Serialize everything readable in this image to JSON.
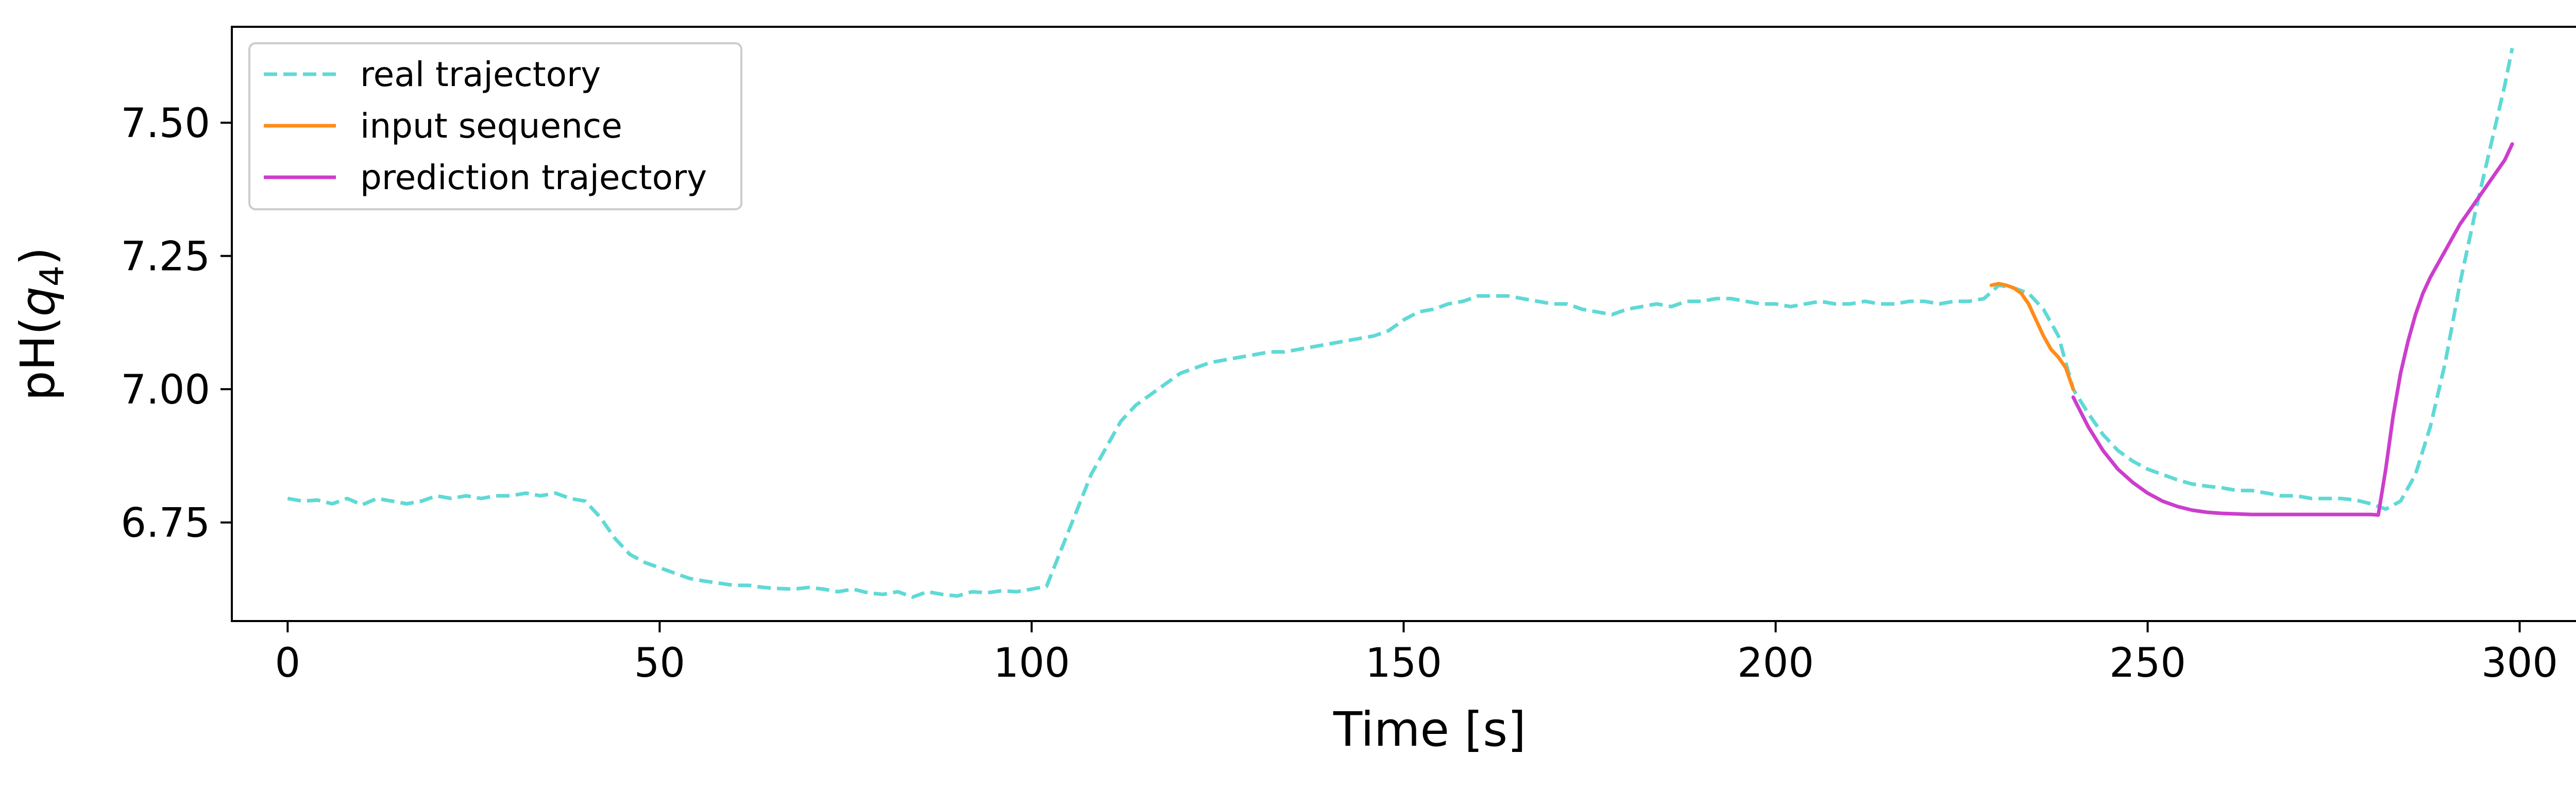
{
  "chart_data": {
    "type": "line",
    "xlabel": "Time [s]",
    "ylabel_prefix": "pH(",
    "ylabel_var": "q",
    "ylabel_sub": "4",
    "ylabel_suffix": ")",
    "xlim": [
      -7.5,
      314.5
    ],
    "ylim": [
      6.565,
      7.68
    ],
    "xticks": [
      0,
      50,
      100,
      150,
      200,
      250,
      300
    ],
    "xtick_labels": [
      "0",
      "50",
      "100",
      "150",
      "200",
      "250",
      "300"
    ],
    "yticks": [
      6.75,
      7.0,
      7.25,
      7.5
    ],
    "ytick_labels": [
      "6.75",
      "7.00",
      "7.25",
      "7.50"
    ],
    "grid": false,
    "legend_position": "top-left",
    "series": [
      {
        "name": "real trajectory",
        "color": "#5fd9d6",
        "style": "dashed",
        "x": [
          0,
          2,
          4,
          6,
          8,
          10,
          12,
          14,
          16,
          18,
          20,
          22,
          24,
          26,
          28,
          30,
          32,
          34,
          36,
          38,
          40,
          42,
          44,
          46,
          48,
          50,
          52,
          54,
          56,
          58,
          60,
          62,
          64,
          66,
          68,
          70,
          72,
          74,
          76,
          78,
          80,
          82,
          84,
          86,
          88,
          90,
          92,
          94,
          96,
          98,
          100,
          102,
          104,
          106,
          108,
          110,
          112,
          114,
          116,
          118,
          120,
          122,
          124,
          126,
          128,
          130,
          132,
          134,
          136,
          138,
          140,
          142,
          144,
          146,
          148,
          150,
          152,
          154,
          156,
          158,
          160,
          162,
          164,
          166,
          168,
          170,
          172,
          174,
          176,
          178,
          180,
          182,
          184,
          186,
          188,
          190,
          192,
          194,
          196,
          198,
          200,
          202,
          204,
          206,
          208,
          210,
          212,
          214,
          216,
          218,
          220,
          222,
          224,
          226,
          228,
          230,
          232,
          234,
          236,
          238,
          240,
          242,
          244,
          246,
          248,
          250,
          252,
          254,
          256,
          258,
          260,
          262,
          264,
          266,
          268,
          270,
          272,
          274,
          276,
          278,
          280,
          282,
          284,
          286,
          288,
          290,
          292,
          294,
          296,
          298,
          299
        ],
        "y": [
          6.795,
          6.79,
          6.792,
          6.785,
          6.795,
          6.783,
          6.795,
          6.79,
          6.785,
          6.79,
          6.8,
          6.795,
          6.8,
          6.795,
          6.8,
          6.8,
          6.805,
          6.8,
          6.805,
          6.795,
          6.79,
          6.76,
          6.72,
          6.69,
          6.675,
          6.665,
          6.655,
          6.645,
          6.64,
          6.636,
          6.632,
          6.632,
          6.628,
          6.626,
          6.625,
          6.628,
          6.625,
          6.62,
          6.625,
          6.618,
          6.615,
          6.62,
          6.61,
          6.62,
          6.615,
          6.612,
          6.62,
          6.618,
          6.622,
          6.62,
          6.625,
          6.63,
          6.7,
          6.77,
          6.84,
          6.89,
          6.94,
          6.97,
          6.99,
          7.01,
          7.03,
          7.04,
          7.05,
          7.055,
          7.06,
          7.065,
          7.07,
          7.07,
          7.075,
          7.08,
          7.085,
          7.09,
          7.095,
          7.1,
          7.11,
          7.13,
          7.145,
          7.15,
          7.16,
          7.165,
          7.175,
          7.175,
          7.175,
          7.17,
          7.165,
          7.16,
          7.16,
          7.15,
          7.145,
          7.14,
          7.15,
          7.155,
          7.16,
          7.155,
          7.165,
          7.165,
          7.17,
          7.17,
          7.165,
          7.16,
          7.16,
          7.155,
          7.16,
          7.165,
          7.16,
          7.16,
          7.165,
          7.16,
          7.16,
          7.165,
          7.165,
          7.16,
          7.165,
          7.165,
          7.17,
          7.195,
          7.19,
          7.18,
          7.15,
          7.1,
          7.0,
          6.955,
          6.915,
          6.885,
          6.865,
          6.85,
          6.84,
          6.83,
          6.822,
          6.818,
          6.815,
          6.81,
          6.81,
          6.805,
          6.8,
          6.8,
          6.795,
          6.795,
          6.795,
          6.792,
          6.785,
          6.775,
          6.79,
          6.84,
          6.93,
          7.05,
          7.2,
          7.33,
          7.45,
          7.57,
          7.64
        ]
      },
      {
        "name": "input sequence",
        "color": "#ff8c1a",
        "style": "solid",
        "x": [
          229,
          230,
          231,
          232,
          233,
          234,
          235,
          236,
          237,
          238,
          239,
          240
        ],
        "y": [
          7.195,
          7.198,
          7.195,
          7.19,
          7.18,
          7.16,
          7.13,
          7.1,
          7.075,
          7.06,
          7.04,
          7.0
        ]
      },
      {
        "name": "prediction trajectory",
        "color": "#cc3ecc",
        "style": "solid",
        "x": [
          240,
          242,
          244,
          246,
          248,
          250,
          252,
          254,
          256,
          258,
          260,
          264,
          268,
          272,
          276,
          280,
          281,
          282,
          283,
          284,
          285,
          286,
          287,
          288,
          290,
          292,
          294,
          296,
          298,
          299
        ],
        "y": [
          6.985,
          6.93,
          6.885,
          6.85,
          6.825,
          6.805,
          6.79,
          6.78,
          6.773,
          6.769,
          6.767,
          6.765,
          6.765,
          6.765,
          6.765,
          6.765,
          6.764,
          6.85,
          6.95,
          7.03,
          7.09,
          7.14,
          7.18,
          7.21,
          7.26,
          7.31,
          7.35,
          7.39,
          7.43,
          7.46
        ]
      }
    ]
  }
}
